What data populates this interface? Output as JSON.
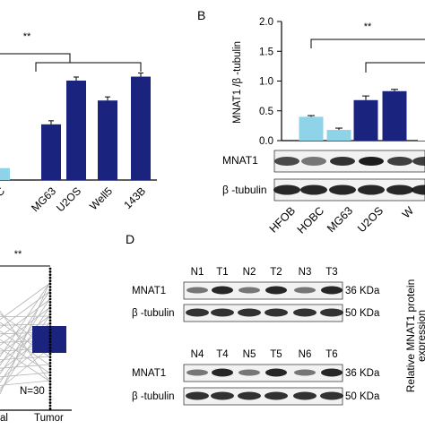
{
  "panel_letters": {
    "b": "B",
    "d": "D"
  },
  "chart_data": [
    {
      "panel": "A",
      "type": "bar",
      "categories": [
        "C",
        "MG63",
        "U2OS",
        "Well5",
        "143B"
      ],
      "values": [
        0.12,
        0.56,
        1.0,
        0.8,
        1.04
      ],
      "colors": [
        "#8fd3e8",
        "#1a237e",
        "#1a237e",
        "#1a237e",
        "#1a237e"
      ],
      "significance": "**",
      "title": "",
      "xlabel": "",
      "ylabel": ""
    },
    {
      "panel": "B",
      "type": "bar",
      "categories": [
        "HFOB",
        "HOBC",
        "MG63",
        "U2OS",
        "W"
      ],
      "values": [
        0.4,
        0.18,
        0.68,
        0.83,
        0.0
      ],
      "errors": [
        0.02,
        0.03,
        0.07,
        0.03,
        0.0
      ],
      "colors": [
        "#8fd3e8",
        "#8fd3e8",
        "#1a237e",
        "#1a237e",
        "#1a237e"
      ],
      "ylabel": "MNAT1 /β -tubulin",
      "yticks": [
        "0.0",
        "0.5",
        "1.0",
        "1.5",
        "2.0"
      ],
      "ylim": [
        0,
        2.0
      ],
      "significance": "**",
      "blot_labels": [
        "MNAT1",
        "β -tubulin"
      ],
      "grid": false
    },
    {
      "panel": "C",
      "type": "box",
      "categories": [
        "al",
        "Tumor"
      ],
      "significance": "**",
      "annotation": "N=30"
    }
  ],
  "panel_d": {
    "blot1": {
      "lanes": [
        "N1",
        "T1",
        "N2",
        "T2",
        "N3",
        "T3"
      ],
      "rows": [
        "MNAT1",
        "β -tubulin"
      ],
      "sizes": [
        "36 KDa",
        "50 KDa"
      ]
    },
    "blot2": {
      "lanes": [
        "N4",
        "T4",
        "N5",
        "T5",
        "N6",
        "T6"
      ],
      "rows": [
        "MNAT1",
        "β -tubulin"
      ],
      "sizes": [
        "36 KDa",
        "50 KDa"
      ]
    },
    "right_axis_label": [
      "Relative MNAT1 protein",
      "expression"
    ]
  }
}
